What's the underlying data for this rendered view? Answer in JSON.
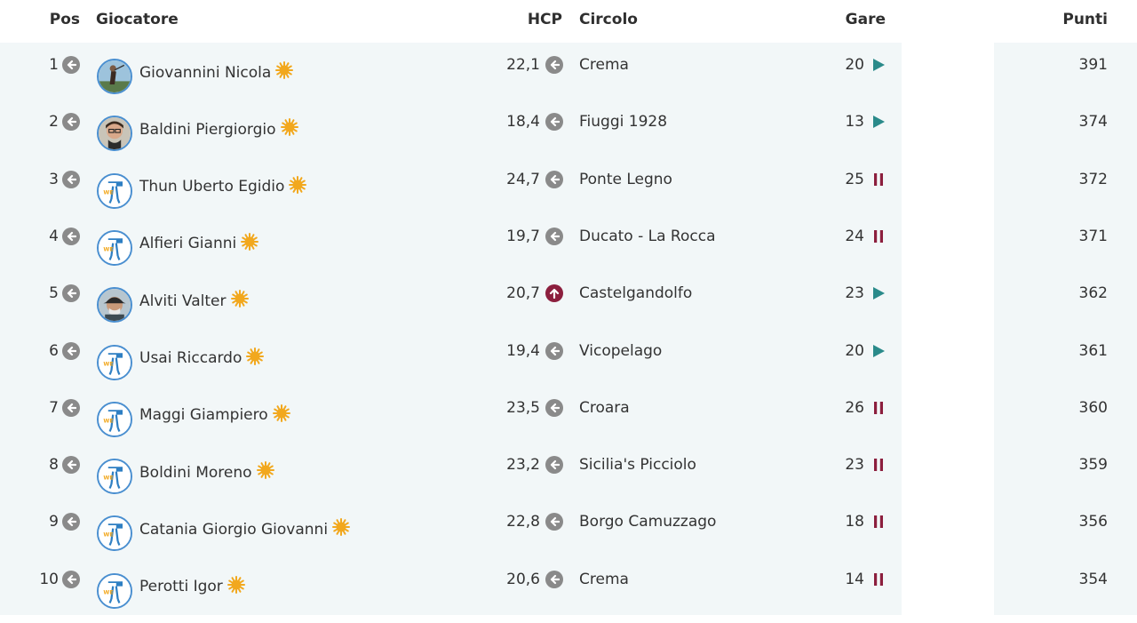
{
  "header": {
    "pos": "Pos",
    "player": "Giocatore",
    "hcp": "HCP",
    "club": "Circolo",
    "gare": "Gare",
    "punti": "Punti"
  },
  "colors": {
    "row_background": "#f2f7f8",
    "arrow_neutral": "#8a8a8a",
    "arrow_up": "#8c1f3e",
    "play_icon": "#2a8a8a",
    "pause_icon": "#8c1f3e",
    "sun_icon": "#f2a81e"
  },
  "rows": [
    {
      "pos": "1",
      "name": "Giovannini Nicola",
      "hcp": "22,1",
      "hcp_trend": "left-arrow-icon",
      "club": "Crema",
      "gare": "20",
      "status": "play-icon",
      "punti": "391",
      "avatar": "photo-golfer"
    },
    {
      "pos": "2",
      "name": "Baldini Piergiorgio",
      "hcp": "18,4",
      "hcp_trend": "left-arrow-icon",
      "club": "Fiuggi 1928",
      "gare": "13",
      "status": "play-icon",
      "punti": "374",
      "avatar": "photo-person"
    },
    {
      "pos": "3",
      "name": "Thun Uberto Egidio",
      "hcp": "24,7",
      "hcp_trend": "left-arrow-icon",
      "club": "Ponte Legno",
      "gare": "25",
      "status": "pause-icon",
      "punti": "372",
      "avatar": "logo"
    },
    {
      "pos": "4",
      "name": "Alfieri Gianni",
      "hcp": "19,7",
      "hcp_trend": "left-arrow-icon",
      "club": "Ducato - La Rocca",
      "gare": "24",
      "status": "pause-icon",
      "punti": "371",
      "avatar": "logo"
    },
    {
      "pos": "5",
      "name": "Alviti Valter",
      "hcp": "20,7",
      "hcp_trend": "up-arrow-icon",
      "club": "Castelgandolfo",
      "gare": "23",
      "status": "play-icon",
      "punti": "362",
      "avatar": "photo-cap"
    },
    {
      "pos": "6",
      "name": "Usai Riccardo",
      "hcp": "19,4",
      "hcp_trend": "left-arrow-icon",
      "club": "Vicopelago",
      "gare": "20",
      "status": "play-icon",
      "punti": "361",
      "avatar": "logo"
    },
    {
      "pos": "7",
      "name": "Maggi Giampiero",
      "hcp": "23,5",
      "hcp_trend": "left-arrow-icon",
      "club": "Croara",
      "gare": "26",
      "status": "pause-icon",
      "punti": "360",
      "avatar": "logo"
    },
    {
      "pos": "8",
      "name": "Boldini Moreno",
      "hcp": "23,2",
      "hcp_trend": "left-arrow-icon",
      "club": "Sicilia's Picciolo",
      "gare": "23",
      "status": "pause-icon",
      "punti": "359",
      "avatar": "logo"
    },
    {
      "pos": "9",
      "name": "Catania Giorgio Giovanni",
      "hcp": "22,8",
      "hcp_trend": "left-arrow-icon",
      "club": "Borgo Camuzzago",
      "gare": "18",
      "status": "pause-icon",
      "punti": "356",
      "avatar": "logo"
    },
    {
      "pos": "10",
      "name": "Perotti Igor",
      "hcp": "20,6",
      "hcp_trend": "left-arrow-icon",
      "club": "Crema",
      "gare": "14",
      "status": "pause-icon",
      "punti": "354",
      "avatar": "logo"
    }
  ]
}
